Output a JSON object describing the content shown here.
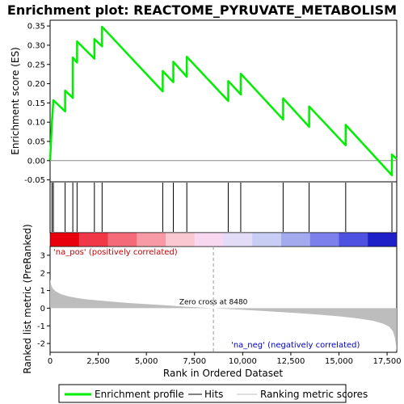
{
  "chart_data": {
    "type": "line",
    "title": "Enrichment plot: REACTOME_PYRUVATE_METABOLISM",
    "xlabel": "Rank in Ordered Dataset",
    "es_ylabel": "Enrichment score (ES)",
    "metric_ylabel": "Ranked list metric (PreRanked)",
    "xlim": [
      0,
      18000
    ],
    "x_ticks": [
      0,
      2500,
      5000,
      7500,
      10000,
      12500,
      15000,
      17500
    ],
    "x_tick_labels": [
      "0",
      "2,500",
      "5,000",
      "7,500",
      "10,000",
      "12,500",
      "15,000",
      "17,500"
    ],
    "es_ylim": [
      -0.055,
      0.365
    ],
    "es_ticks": [
      -0.05,
      0.0,
      0.05,
      0.1,
      0.15,
      0.2,
      0.25,
      0.3,
      0.35
    ],
    "es_tick_labels": [
      "-0.05",
      "0.00",
      "0.05",
      "0.10",
      "0.15",
      "0.20",
      "0.25",
      "0.30",
      "0.35"
    ],
    "metric_ylim": [
      -2.5,
      3.5
    ],
    "metric_ticks": [
      -2,
      -1,
      0,
      1,
      2,
      3
    ],
    "metric_tick_labels": [
      "-2",
      "-1",
      "0",
      "1",
      "2",
      "3"
    ],
    "hits": [
      100,
      170,
      780,
      1180,
      1400,
      2300,
      2700,
      5850,
      6400,
      7100,
      9250,
      9900,
      12100,
      13450,
      15350,
      17750
    ],
    "es_points": [
      [
        0,
        0.0
      ],
      [
        100,
        0.105
      ],
      [
        170,
        0.157
      ],
      [
        780,
        0.128
      ],
      [
        780,
        0.182
      ],
      [
        1180,
        0.163
      ],
      [
        1180,
        0.268
      ],
      [
        1400,
        0.255
      ],
      [
        1400,
        0.31
      ],
      [
        2300,
        0.265
      ],
      [
        2300,
        0.316
      ],
      [
        2700,
        0.297
      ],
      [
        2700,
        0.348
      ],
      [
        5850,
        0.18
      ],
      [
        5850,
        0.233
      ],
      [
        6400,
        0.204
      ],
      [
        6400,
        0.257
      ],
      [
        7100,
        0.218
      ],
      [
        7100,
        0.27
      ],
      [
        9250,
        0.155
      ],
      [
        9250,
        0.207
      ],
      [
        9900,
        0.172
      ],
      [
        9900,
        0.226
      ],
      [
        12100,
        0.107
      ],
      [
        12100,
        0.162
      ],
      [
        13450,
        0.088
      ],
      [
        13450,
        0.141
      ],
      [
        15350,
        0.04
      ],
      [
        15350,
        0.093
      ],
      [
        17750,
        -0.038
      ],
      [
        17750,
        0.016
      ],
      [
        18000,
        0.004
      ]
    ],
    "metric_curve": [
      [
        0,
        1.65
      ],
      [
        60,
        1.3
      ],
      [
        150,
        1.1
      ],
      [
        300,
        0.95
      ],
      [
        600,
        0.78
      ],
      [
        1000,
        0.66
      ],
      [
        1500,
        0.56
      ],
      [
        2000,
        0.49
      ],
      [
        3000,
        0.39
      ],
      [
        4000,
        0.3
      ],
      [
        5000,
        0.23
      ],
      [
        6000,
        0.16
      ],
      [
        7000,
        0.09
      ],
      [
        8480,
        0.0
      ],
      [
        10000,
        -0.09
      ],
      [
        11000,
        -0.15
      ],
      [
        12000,
        -0.22
      ],
      [
        13000,
        -0.29
      ],
      [
        14000,
        -0.37
      ],
      [
        15000,
        -0.46
      ],
      [
        16000,
        -0.58
      ],
      [
        16800,
        -0.72
      ],
      [
        17300,
        -0.88
      ],
      [
        17600,
        -1.05
      ],
      [
        17800,
        -1.3
      ],
      [
        17900,
        -1.65
      ],
      [
        17950,
        -2.0
      ],
      [
        18000,
        -2.45
      ]
    ],
    "zero_cross": 8480,
    "zero_cross_label": "Zero cross at 8480",
    "pos_label": "'na_pos' (positively correlated)",
    "neg_label": "'na_neg' (negatively correlated)",
    "heat_colors": [
      "#e8000c",
      "#f03848",
      "#f46a78",
      "#f79aa6",
      "#fac8d0",
      "#f7d8f0",
      "#e2dcf6",
      "#c8cdf4",
      "#a4aaee",
      "#7b80ea",
      "#4f52e0",
      "#2020c8"
    ],
    "colors": {
      "enrichment_profile": "#00ee00",
      "hits": "#000000",
      "ranking_scores": "#bdbdbd",
      "zero_line": "#bdbdbd"
    },
    "legend": [
      "Enrichment profile",
      "Hits",
      "Ranking metric scores"
    ]
  }
}
